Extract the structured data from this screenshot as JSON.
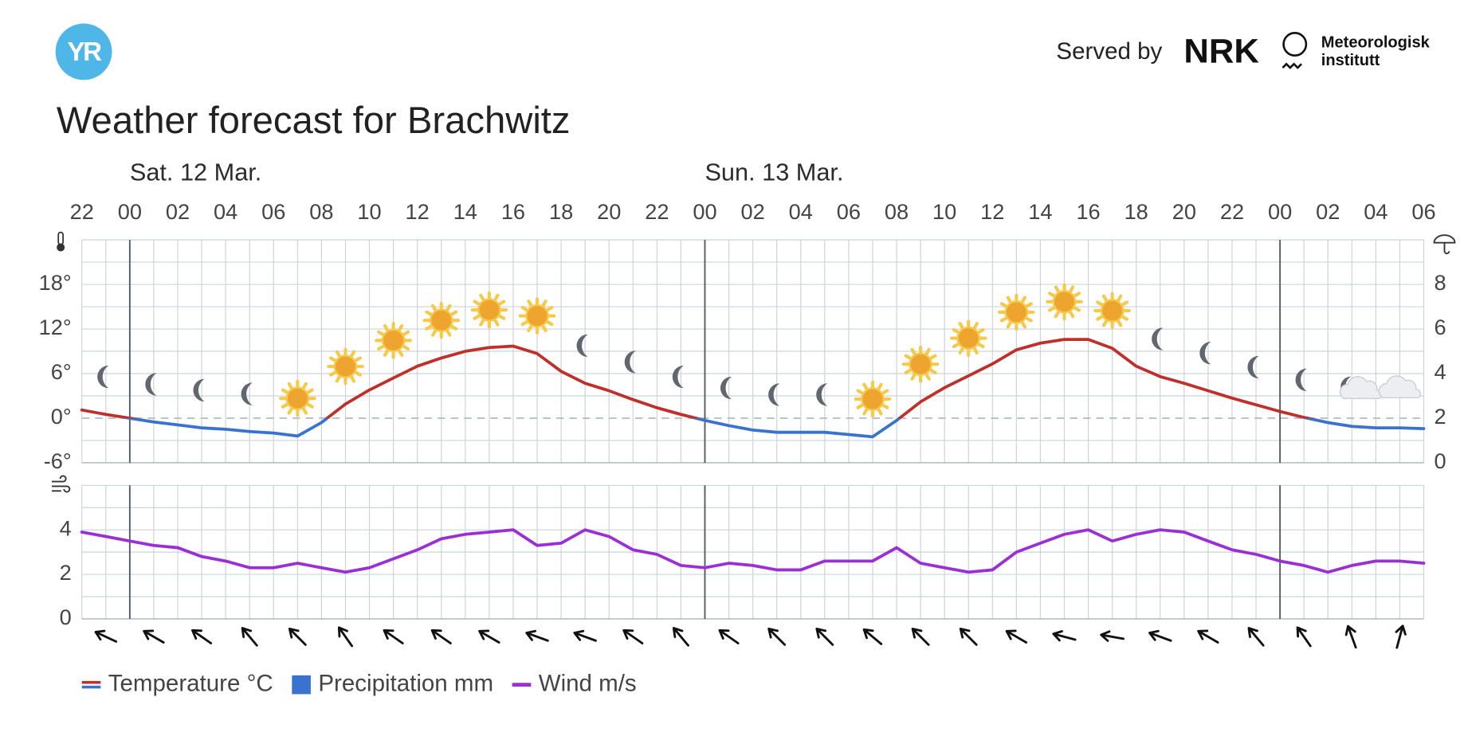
{
  "header": {
    "logo": "YR",
    "served_by": "Served by",
    "nrk": "NRK",
    "met": [
      "Meteorologisk",
      "institutt"
    ]
  },
  "chart_data": [
    {
      "type": "line",
      "title": "Weather forecast for Brachwitz",
      "categories": [
        "22",
        null,
        "00",
        null,
        "02",
        null,
        "04",
        null,
        "06",
        null,
        "08",
        null,
        "10",
        null,
        "12",
        null,
        "14",
        null,
        "16",
        null,
        "18",
        null,
        "20",
        null,
        "22",
        null,
        "00",
        null,
        "02",
        null,
        "04",
        null,
        "06",
        null,
        "08",
        null,
        "10",
        null,
        "12",
        null,
        "14",
        null,
        "16",
        null,
        "18",
        null,
        "20",
        null,
        "22",
        null,
        "00",
        null,
        "02",
        null,
        "04",
        null,
        "06"
      ],
      "days": [
        "Sat. 12 Mar.",
        "Sun. 13 Mar."
      ],
      "ylim": [
        -6,
        24
      ],
      "yticks": [
        {
          "value": -6,
          "label": "-6°"
        },
        {
          "value": 0,
          "label": "0°"
        },
        {
          "value": 6,
          "label": "6°"
        },
        {
          "value": 12,
          "label": "12°"
        },
        {
          "value": 18,
          "label": "18°"
        }
      ],
      "y2lim": [
        0,
        10
      ],
      "y2ticks": [
        0,
        2,
        4,
        6,
        8
      ],
      "grid": true,
      "series": [
        {
          "name": "Temperature °C",
          "color": "#c0302b",
          "negative_color": "#3a72d0",
          "values": [
            1.1,
            0.5,
            0,
            -0.5,
            -0.9,
            -1.3,
            -1.5,
            -1.8,
            -2.0,
            -2.4,
            -0.6,
            1.9,
            3.8,
            5.4,
            7.0,
            8.1,
            9.0,
            9.5,
            9.7,
            8.7,
            6.3,
            4.7,
            3.7,
            2.5,
            1.4,
            0.5,
            -0.3,
            -1.0,
            -1.6,
            -1.9,
            -1.9,
            -1.9,
            -2.2,
            -2.5,
            -0.3,
            2.2,
            4.1,
            5.7,
            7.3,
            9.2,
            10.1,
            10.6,
            10.6,
            9.4,
            7.0,
            5.6,
            4.7,
            3.7,
            2.7,
            1.8,
            0.9,
            0.1,
            -0.6,
            -1.1,
            -1.3,
            -1.3,
            -1.4
          ]
        },
        {
          "name": "Precipitation mm",
          "color": "#3a72d0",
          "axis": "y2",
          "values": [
            0,
            0,
            0,
            0,
            0,
            0,
            0,
            0,
            0,
            0,
            0,
            0,
            0,
            0,
            0,
            0,
            0,
            0,
            0,
            0,
            0,
            0,
            0,
            0,
            0,
            0,
            0,
            0,
            0,
            0,
            0,
            0,
            0,
            0,
            0,
            0,
            0,
            0,
            0,
            0,
            0,
            0,
            0,
            0,
            0,
            0,
            0,
            0,
            0,
            0,
            0,
            0,
            0,
            0,
            0,
            0,
            0
          ]
        }
      ],
      "symbols": [
        "moon",
        "moon",
        "moon",
        "moon",
        "sun",
        "sun",
        "sun",
        "sun",
        "sun",
        "sun",
        "moon",
        "moon",
        "moon",
        "moon",
        "moon",
        "moon",
        "sun",
        "sun",
        "sun",
        "sun",
        "sun",
        "sun",
        "moon",
        "moon",
        "moon",
        "moon",
        "moon-cloud",
        "cloud"
      ]
    },
    {
      "type": "line",
      "ylim": [
        0,
        6
      ],
      "yticks": [
        0,
        2,
        4
      ],
      "grid": true,
      "series": [
        {
          "name": "Wind m/s",
          "color": "#9b2fd6",
          "values": [
            3.9,
            3.7,
            3.5,
            3.3,
            3.2,
            2.8,
            2.6,
            2.3,
            2.3,
            2.5,
            2.3,
            2.1,
            2.3,
            2.7,
            3.1,
            3.6,
            3.8,
            3.9,
            4.0,
            3.3,
            3.4,
            4.0,
            3.7,
            3.1,
            2.9,
            2.4,
            2.3,
            2.5,
            2.4,
            2.2,
            2.2,
            2.6,
            2.6,
            2.6,
            3.2,
            2.5,
            2.3,
            2.1,
            2.2,
            3.0,
            3.4,
            3.8,
            4.0,
            3.5,
            3.8,
            4.0,
            3.9,
            3.5,
            3.1,
            2.9,
            2.6,
            2.4,
            2.1,
            2.4,
            2.6,
            2.6,
            2.5
          ]
        }
      ],
      "wind_direction": [
        295,
        300,
        305,
        320,
        315,
        325,
        305,
        305,
        300,
        290,
        290,
        305,
        320,
        305,
        315,
        315,
        310,
        315,
        315,
        300,
        285,
        280,
        290,
        300,
        320,
        325,
        340,
        15
      ]
    }
  ]
}
